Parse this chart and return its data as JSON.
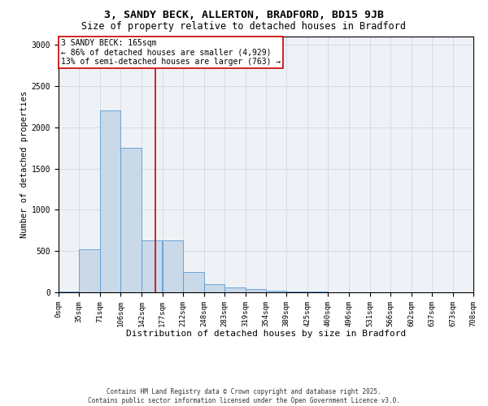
{
  "title_line1": "3, SANDY BECK, ALLERTON, BRADFORD, BD15 9JB",
  "title_line2": "Size of property relative to detached houses in Bradford",
  "xlabel": "Distribution of detached houses by size in Bradford",
  "ylabel": "Number of detached properties",
  "annotation_title": "3 SANDY BECK: 165sqm",
  "annotation_line2": "← 86% of detached houses are smaller (4,929)",
  "annotation_line3": "13% of semi-detached houses are larger (763) →",
  "footer_line1": "Contains HM Land Registry data © Crown copyright and database right 2025.",
  "footer_line2": "Contains public sector information licensed under the Open Government Licence v3.0.",
  "property_size": 165,
  "bin_edges": [
    0,
    35,
    71,
    106,
    142,
    177,
    212,
    248,
    283,
    319,
    354,
    389,
    425,
    460,
    496,
    531,
    566,
    602,
    637,
    673,
    708
  ],
  "bin_labels": [
    "0sqm",
    "35sqm",
    "71sqm",
    "106sqm",
    "142sqm",
    "177sqm",
    "212sqm",
    "248sqm",
    "283sqm",
    "319sqm",
    "354sqm",
    "389sqm",
    "425sqm",
    "460sqm",
    "496sqm",
    "531sqm",
    "566sqm",
    "602sqm",
    "637sqm",
    "673sqm",
    "708sqm"
  ],
  "counts": [
    10,
    520,
    2200,
    1750,
    630,
    630,
    250,
    100,
    60,
    40,
    15,
    8,
    5,
    3,
    2,
    2,
    1,
    1,
    1,
    1
  ],
  "bar_face_color": "#c9d9e8",
  "bar_edge_color": "#5b9bd5",
  "vline_color": "#cc0000",
  "grid_color": "#d0d8e0",
  "bg_color": "#eef2f7",
  "annotation_box_color": "#cc0000",
  "ylim": [
    0,
    3100
  ],
  "yticks": [
    0,
    500,
    1000,
    1500,
    2000,
    2500,
    3000
  ],
  "title1_fontsize": 9.5,
  "title2_fontsize": 8.5,
  "xlabel_fontsize": 8,
  "ylabel_fontsize": 7.5,
  "tick_fontsize": 6.5,
  "annotation_fontsize": 7,
  "footer_fontsize": 5.5
}
